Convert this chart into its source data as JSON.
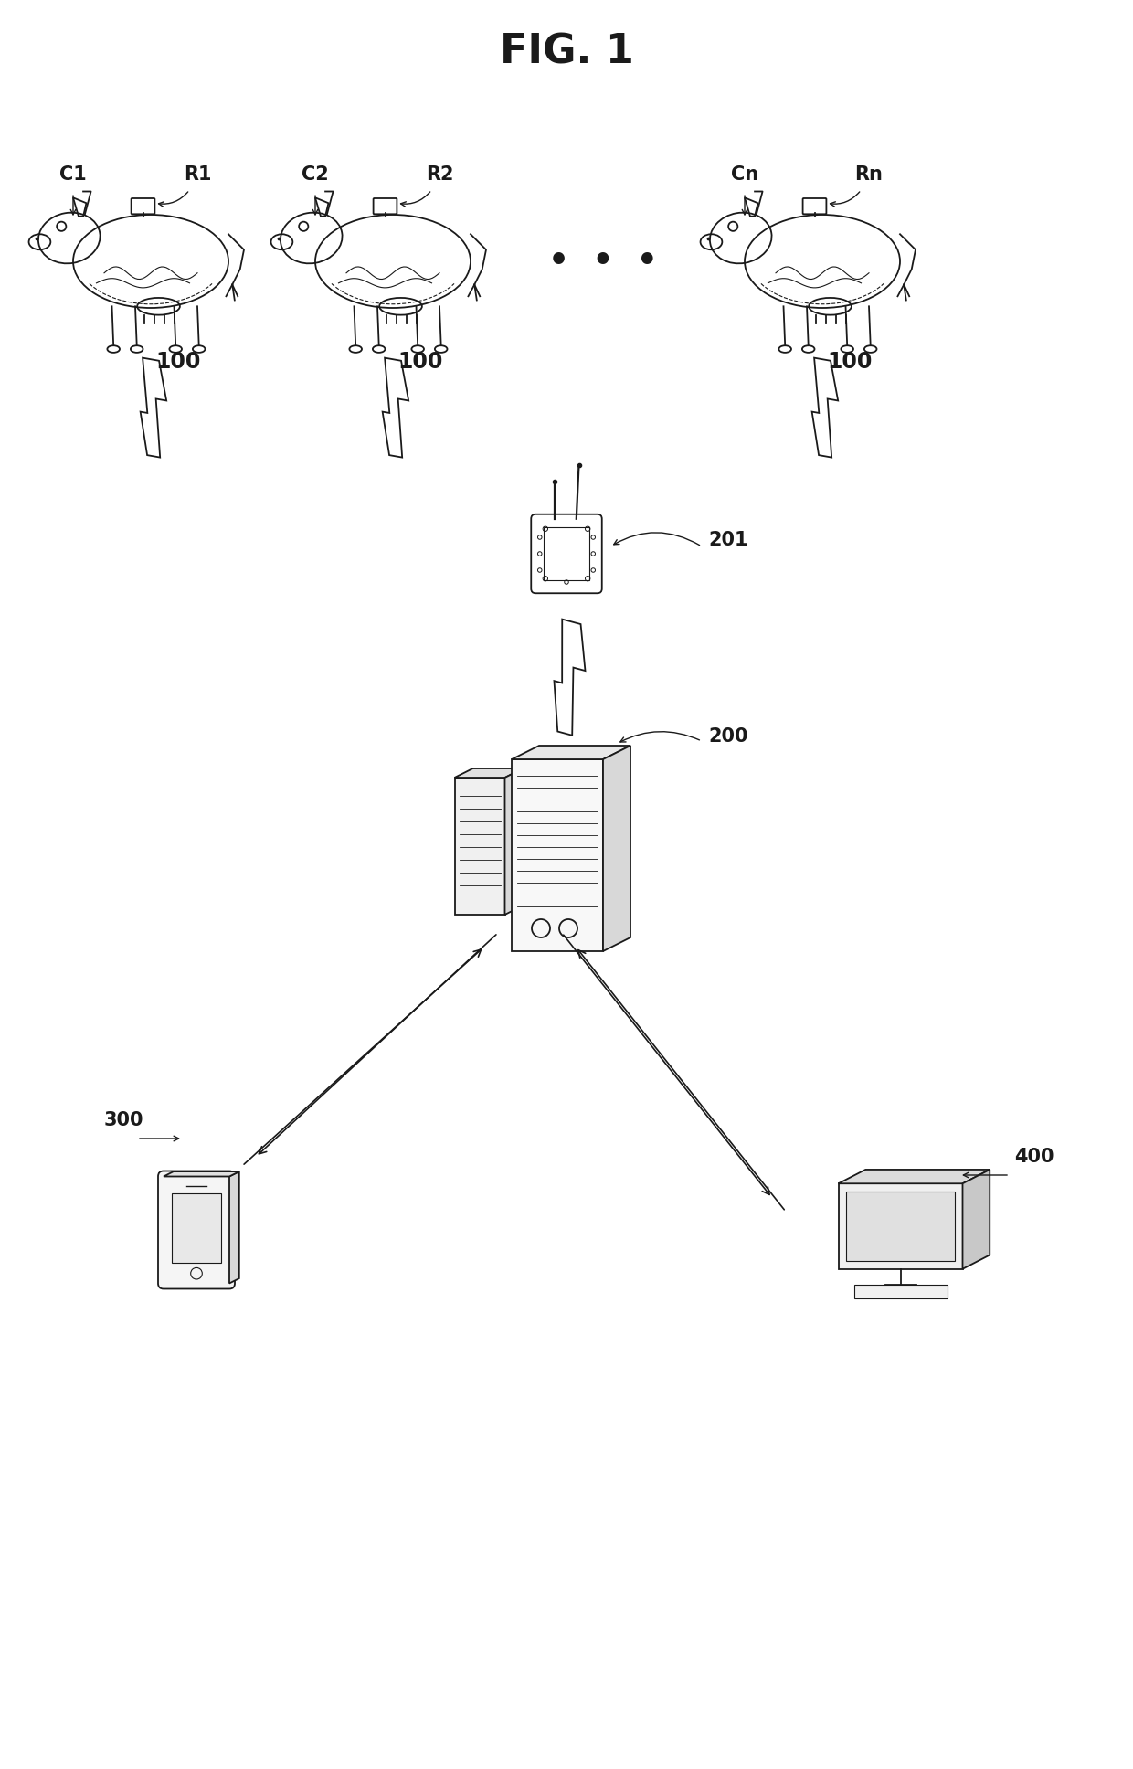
{
  "title": "FIG. 1",
  "title_fontsize": 32,
  "title_fontweight": "bold",
  "background_color": "#ffffff",
  "line_color": "#1a1a1a",
  "text_color": "#1a1a1a",
  "cow_labels": [
    "C1",
    "C2",
    "Cn"
  ],
  "sensor_labels": [
    "R1",
    "R2",
    "Rn"
  ],
  "device_label_100": "100",
  "relay_label": "201",
  "server_label": "200",
  "phone_label": "300",
  "computer_label": "400"
}
